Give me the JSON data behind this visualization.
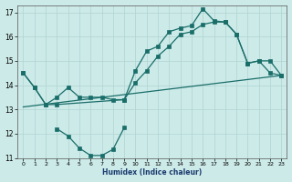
{
  "xlabel": "Humidex (Indice chaleur)",
  "background_color": "#cceae8",
  "grid_color": "#aed4d2",
  "line_color": "#1a6e6a",
  "xlim": [
    -0.5,
    23.5
  ],
  "ylim": [
    11,
    17.3
  ],
  "yticks": [
    11,
    12,
    13,
    14,
    15,
    16,
    17
  ],
  "xticks": [
    0,
    1,
    2,
    3,
    4,
    5,
    6,
    7,
    8,
    9,
    10,
    11,
    12,
    13,
    14,
    15,
    16,
    17,
    18,
    19,
    20,
    21,
    22,
    23
  ],
  "line1_x": [
    0,
    1,
    2,
    3,
    4,
    5,
    6,
    7,
    8,
    9,
    10,
    11,
    12,
    13,
    14,
    15,
    16,
    17,
    18,
    19,
    20,
    21,
    22,
    23
  ],
  "line1_y": [
    14.5,
    13.9,
    13.2,
    13.5,
    13.9,
    13.5,
    13.5,
    13.5,
    13.4,
    13.4,
    14.6,
    15.4,
    15.6,
    16.2,
    16.35,
    16.45,
    17.15,
    16.65,
    16.6,
    16.1,
    14.9,
    15.0,
    14.5,
    14.4
  ],
  "line2_x": [
    0,
    1,
    2,
    3,
    9,
    10,
    11,
    12,
    13,
    14,
    15,
    16,
    17,
    18,
    19,
    20,
    21,
    22,
    23
  ],
  "line2_y": [
    14.5,
    13.9,
    13.2,
    13.2,
    13.4,
    14.1,
    14.6,
    15.2,
    15.6,
    16.1,
    16.2,
    16.5,
    16.6,
    16.6,
    16.1,
    14.9,
    15.0,
    15.0,
    14.4
  ],
  "line3_x": [
    0,
    23
  ],
  "line3_y": [
    13.1,
    14.4
  ],
  "line4_x": [
    3,
    4,
    5,
    6,
    7,
    8,
    9
  ],
  "line4_y": [
    12.2,
    11.9,
    11.4,
    11.1,
    11.1,
    11.35,
    12.25
  ]
}
